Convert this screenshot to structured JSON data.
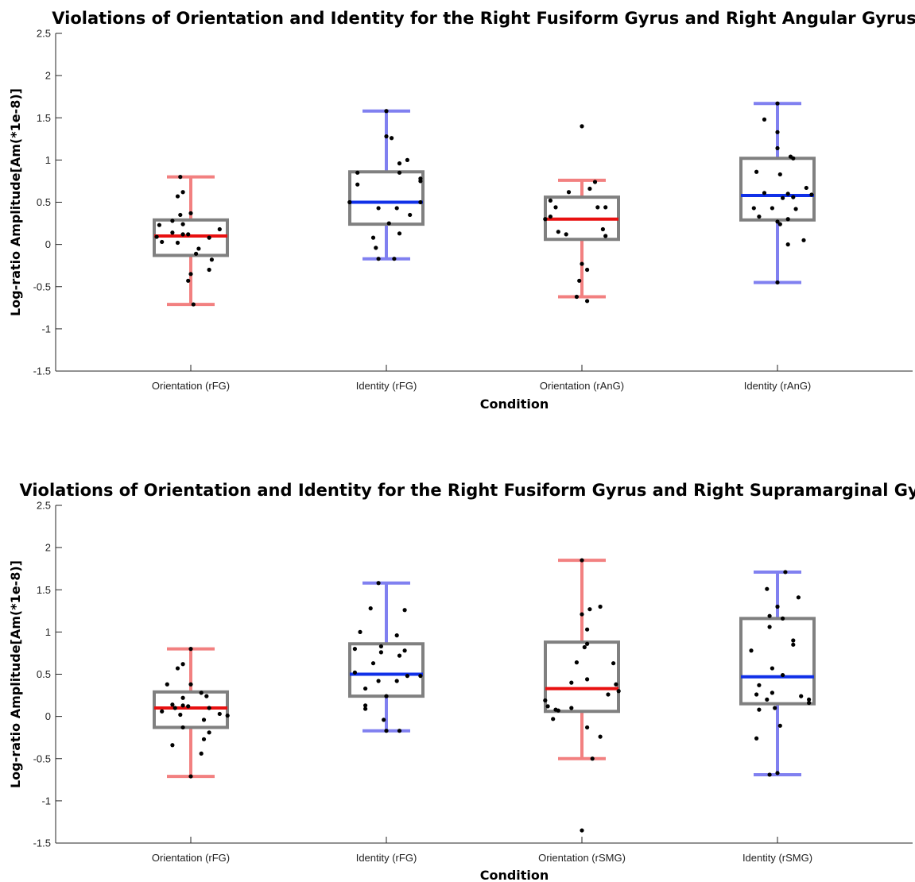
{
  "chart_data": [
    {
      "type": "box",
      "title": "Violations of Orientation and Identity for the Right Fusiform Gyrus and Right Angular Gyrus",
      "xlabel": "Condition",
      "ylabel": "Log-ratio Amplitude[Am(*1e-8)]",
      "ylim": [
        -1.5,
        2.5
      ],
      "yticks": [
        -1.5,
        -1,
        -0.5,
        0,
        0.5,
        1,
        1.5,
        2,
        2.5
      ],
      "ytick_labels": [
        "-1.5",
        "-1",
        "-0.5",
        "0",
        "0.5",
        "1",
        "1.5",
        "2",
        "2.5"
      ],
      "grid": false,
      "categories": [
        "Orientation (rFG)",
        "Identity (rFG)",
        "Orientation (rAnG)",
        "Identity (rAnG)"
      ],
      "boxes": [
        {
          "whisker_low": -0.71,
          "q1": -0.13,
          "median": 0.1,
          "q3": 0.29,
          "whisker_high": 0.8,
          "color": "#e81010",
          "points": [
            [
              -0.04,
              0.8
            ],
            [
              -0.03,
              0.62
            ],
            [
              -0.05,
              0.57
            ],
            [
              0.0,
              0.37
            ],
            [
              -0.04,
              0.35
            ],
            [
              -0.07,
              0.28
            ],
            [
              -0.12,
              0.23
            ],
            [
              -0.03,
              0.24
            ],
            [
              0.11,
              0.18
            ],
            [
              -0.07,
              0.14
            ],
            [
              -0.03,
              0.12
            ],
            [
              -0.01,
              0.12
            ],
            [
              -0.13,
              0.09
            ],
            [
              0.07,
              0.08
            ],
            [
              -0.11,
              0.03
            ],
            [
              -0.05,
              0.02
            ],
            [
              0.03,
              -0.05
            ],
            [
              0.02,
              -0.11
            ],
            [
              0.08,
              -0.18
            ],
            [
              0.07,
              -0.3
            ],
            [
              0.0,
              -0.35
            ],
            [
              -0.01,
              -0.43
            ],
            [
              0.01,
              -0.71
            ]
          ]
        },
        {
          "whisker_low": -0.17,
          "q1": 0.24,
          "median": 0.5,
          "q3": 0.86,
          "whisker_high": 1.58,
          "color": "#1030e8",
          "points": [
            [
              0.0,
              1.58
            ],
            [
              0.0,
              1.28
            ],
            [
              0.02,
              1.26
            ],
            [
              0.08,
              1.0
            ],
            [
              0.13,
              0.78
            ],
            [
              0.13,
              0.75
            ],
            [
              -0.11,
              0.71
            ],
            [
              0.05,
              0.96
            ],
            [
              0.05,
              0.85
            ],
            [
              -0.11,
              0.85
            ],
            [
              -0.14,
              0.5
            ],
            [
              0.13,
              0.5
            ],
            [
              -0.03,
              0.43
            ],
            [
              0.04,
              0.43
            ],
            [
              0.09,
              0.35
            ],
            [
              0.01,
              0.25
            ],
            [
              0.05,
              0.13
            ],
            [
              -0.05,
              0.08
            ],
            [
              -0.04,
              -0.04
            ],
            [
              -0.03,
              -0.17
            ],
            [
              0.03,
              -0.17
            ]
          ]
        },
        {
          "whisker_low": -0.62,
          "q1": 0.06,
          "median": 0.3,
          "q3": 0.56,
          "whisker_high": 0.76,
          "color": "#e81010",
          "points": [
            [
              0.0,
              1.4
            ],
            [
              0.05,
              0.74
            ],
            [
              0.03,
              0.66
            ],
            [
              -0.05,
              0.62
            ],
            [
              -0.12,
              0.52
            ],
            [
              -0.1,
              0.44
            ],
            [
              0.06,
              0.44
            ],
            [
              0.09,
              0.44
            ],
            [
              -0.14,
              0.3
            ],
            [
              -0.12,
              0.33
            ],
            [
              0.08,
              0.18
            ],
            [
              -0.09,
              0.15
            ],
            [
              -0.06,
              0.12
            ],
            [
              0.09,
              0.1
            ],
            [
              0.0,
              -0.23
            ],
            [
              0.02,
              -0.3
            ],
            [
              -0.01,
              -0.43
            ],
            [
              -0.02,
              -0.62
            ],
            [
              0.02,
              -0.67
            ]
          ]
        },
        {
          "whisker_low": -0.45,
          "q1": 0.29,
          "median": 0.58,
          "q3": 1.02,
          "whisker_high": 1.67,
          "color": "#1030e8",
          "points": [
            [
              0.0,
              1.67
            ],
            [
              -0.05,
              1.48
            ],
            [
              0.0,
              1.33
            ],
            [
              0.0,
              1.14
            ],
            [
              0.05,
              1.04
            ],
            [
              0.06,
              1.02
            ],
            [
              -0.08,
              0.86
            ],
            [
              0.01,
              0.83
            ],
            [
              0.11,
              0.67
            ],
            [
              -0.05,
              0.61
            ],
            [
              0.04,
              0.6
            ],
            [
              0.13,
              0.59
            ],
            [
              0.02,
              0.55
            ],
            [
              0.06,
              0.56
            ],
            [
              -0.02,
              0.43
            ],
            [
              -0.09,
              0.43
            ],
            [
              0.07,
              0.42
            ],
            [
              -0.07,
              0.33
            ],
            [
              0.04,
              0.3
            ],
            [
              0.0,
              0.27
            ],
            [
              0.01,
              0.24
            ],
            [
              0.1,
              0.05
            ],
            [
              0.04,
              0.0
            ],
            [
              0.0,
              -0.45
            ]
          ]
        }
      ]
    },
    {
      "type": "box",
      "title": "Violations of Orientation and Identity for the Right Fusiform Gyrus and Right Supramarginal Gyrus",
      "xlabel": "Condition",
      "ylabel": "Log-ratio Amplitude[Am(*1e-8)]",
      "ylim": [
        -1.5,
        2.5
      ],
      "yticks": [
        -1.5,
        -1,
        -0.5,
        0,
        0.5,
        1,
        1.5,
        2,
        2.5
      ],
      "ytick_labels": [
        "-1.5",
        "-1",
        "-0.5",
        "0",
        "0.5",
        "1",
        "1.5",
        "2",
        "2.5"
      ],
      "grid": false,
      "categories": [
        "Orientation (rFG)",
        "Identity (rFG)",
        "Orientation (rSMG)",
        "Identity (rSMG)"
      ],
      "boxes": [
        {
          "whisker_low": -0.71,
          "q1": -0.13,
          "median": 0.1,
          "q3": 0.29,
          "whisker_high": 0.8,
          "color": "#e81010",
          "points": [
            [
              0.0,
              0.8
            ],
            [
              -0.03,
              0.62
            ],
            [
              -0.05,
              0.57
            ],
            [
              -0.09,
              0.38
            ],
            [
              0.0,
              0.38
            ],
            [
              0.04,
              0.28
            ],
            [
              0.06,
              0.24
            ],
            [
              -0.03,
              0.22
            ],
            [
              -0.07,
              0.14
            ],
            [
              -0.03,
              0.13
            ],
            [
              -0.01,
              0.12
            ],
            [
              -0.06,
              0.1
            ],
            [
              0.07,
              0.1
            ],
            [
              -0.11,
              0.06
            ],
            [
              0.11,
              0.03
            ],
            [
              -0.04,
              0.02
            ],
            [
              0.14,
              0.01
            ],
            [
              0.05,
              -0.04
            ],
            [
              -0.03,
              -0.13
            ],
            [
              0.07,
              -0.19
            ],
            [
              0.05,
              -0.27
            ],
            [
              -0.07,
              -0.34
            ],
            [
              0.04,
              -0.44
            ],
            [
              0.0,
              -0.71
            ]
          ]
        },
        {
          "whisker_low": -0.17,
          "q1": 0.24,
          "median": 0.5,
          "q3": 0.86,
          "whisker_high": 1.58,
          "color": "#1030e8",
          "points": [
            [
              -0.03,
              1.58
            ],
            [
              -0.06,
              1.28
            ],
            [
              0.07,
              1.26
            ],
            [
              -0.1,
              1.0
            ],
            [
              0.04,
              0.96
            ],
            [
              -0.02,
              0.83
            ],
            [
              -0.12,
              0.8
            ],
            [
              0.07,
              0.78
            ],
            [
              -0.02,
              0.76
            ],
            [
              0.05,
              0.72
            ],
            [
              -0.05,
              0.63
            ],
            [
              -0.12,
              0.52
            ],
            [
              0.13,
              0.48
            ],
            [
              0.08,
              0.48
            ],
            [
              -0.03,
              0.42
            ],
            [
              0.04,
              0.42
            ],
            [
              -0.08,
              0.33
            ],
            [
              0.0,
              0.24
            ],
            [
              -0.08,
              0.13
            ],
            [
              -0.08,
              0.09
            ],
            [
              -0.01,
              -0.04
            ],
            [
              0.0,
              -0.17
            ],
            [
              0.05,
              -0.17
            ]
          ]
        },
        {
          "whisker_low": -0.5,
          "q1": 0.06,
          "median": 0.33,
          "q3": 0.88,
          "whisker_high": 1.85,
          "color": "#e81010",
          "points": [
            [
              0.0,
              1.85
            ],
            [
              0.07,
              1.3
            ],
            [
              0.03,
              1.27
            ],
            [
              0.0,
              1.21
            ],
            [
              0.02,
              1.03
            ],
            [
              0.02,
              0.86
            ],
            [
              0.01,
              0.82
            ],
            [
              -0.02,
              0.64
            ],
            [
              0.12,
              0.63
            ],
            [
              0.02,
              0.44
            ],
            [
              -0.04,
              0.4
            ],
            [
              0.13,
              0.38
            ],
            [
              0.14,
              0.3
            ],
            [
              0.1,
              0.26
            ],
            [
              -0.14,
              0.19
            ],
            [
              -0.13,
              0.12
            ],
            [
              -0.1,
              0.08
            ],
            [
              -0.04,
              0.1
            ],
            [
              -0.09,
              0.07
            ],
            [
              -0.11,
              -0.03
            ],
            [
              0.02,
              -0.13
            ],
            [
              0.07,
              -0.24
            ],
            [
              0.04,
              -0.5
            ],
            [
              0.0,
              -1.35
            ]
          ]
        },
        {
          "whisker_low": -0.69,
          "q1": 0.15,
          "median": 0.47,
          "q3": 1.16,
          "whisker_high": 1.71,
          "color": "#1030e8",
          "points": [
            [
              0.03,
              1.71
            ],
            [
              -0.04,
              1.51
            ],
            [
              0.08,
              1.41
            ],
            [
              0.0,
              1.3
            ],
            [
              -0.03,
              1.19
            ],
            [
              0.02,
              1.16
            ],
            [
              -0.03,
              1.06
            ],
            [
              0.06,
              0.9
            ],
            [
              -0.1,
              0.78
            ],
            [
              0.06,
              0.85
            ],
            [
              -0.02,
              0.57
            ],
            [
              0.02,
              0.49
            ],
            [
              -0.07,
              0.37
            ],
            [
              -0.02,
              0.28
            ],
            [
              -0.08,
              0.26
            ],
            [
              0.09,
              0.24
            ],
            [
              -0.04,
              0.2
            ],
            [
              0.12,
              0.2
            ],
            [
              0.12,
              0.16
            ],
            [
              -0.01,
              0.1
            ],
            [
              -0.07,
              0.08
            ],
            [
              0.01,
              -0.11
            ],
            [
              -0.08,
              -0.26
            ],
            [
              0.0,
              -0.67
            ],
            [
              -0.03,
              -0.69
            ]
          ]
        }
      ]
    }
  ]
}
